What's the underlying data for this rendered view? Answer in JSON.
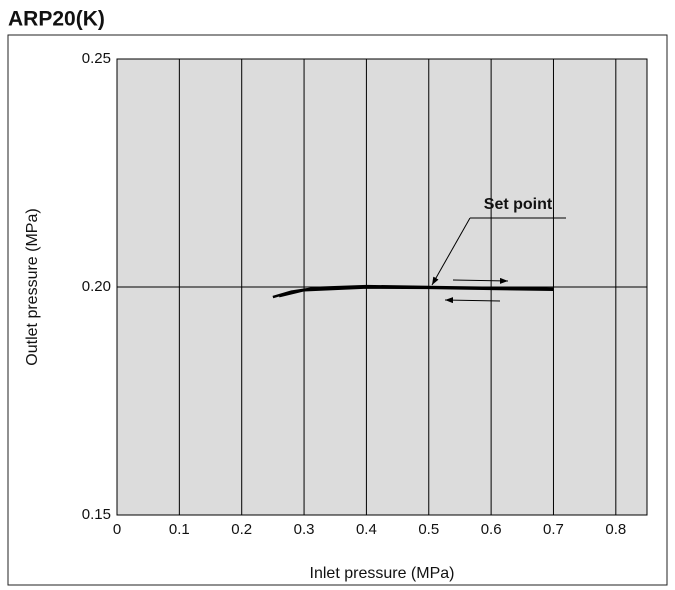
{
  "chart_data": {
    "type": "line",
    "title": "ARP20(K)",
    "xlabel": "Inlet pressure (MPa)",
    "ylabel": "Outlet pressure (MPa)",
    "annotation": "Set point",
    "series": [
      {
        "name": null,
        "color": "#000000",
        "x": [
          0.25,
          0.28,
          0.32,
          0.4,
          0.5,
          0.6,
          0.7
        ],
        "values": [
          0.1978,
          0.199,
          0.1998,
          0.2002,
          0.2,
          0.1998,
          0.1996
        ]
      },
      {
        "name": null,
        "color": "#000000",
        "x": [
          0.7,
          0.6,
          0.5,
          0.4,
          0.3,
          0.26
        ],
        "values": [
          0.1994,
          0.1996,
          0.1998,
          0.1999,
          0.1993,
          0.198
        ]
      }
    ],
    "xlim": [
      0,
      0.85
    ],
    "xticks": [
      0,
      0.1,
      0.2,
      0.3,
      0.4,
      0.5,
      0.6,
      0.7,
      0.8
    ],
    "ylim": [
      0.15,
      0.25
    ],
    "yticks": [
      0.15,
      {
        "value": 0.2,
        "label": "0.20"
      },
      0.25
    ],
    "grid": true
  }
}
